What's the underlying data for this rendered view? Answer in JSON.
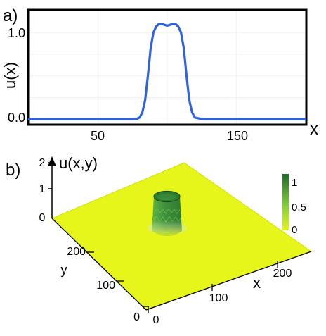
{
  "chart_data": [
    {
      "type": "line",
      "panel_label": "a)",
      "xlabel": "x",
      "ylabel": "u(x)",
      "xlim": [
        0,
        200
      ],
      "ylim": [
        -0.05,
        1.25
      ],
      "x_ticks": [
        50,
        150
      ],
      "x_tick_labels": [
        "50",
        "150"
      ],
      "y_ticks": [
        0.0,
        1.0
      ],
      "y_tick_labels": [
        "0.0",
        "1.0"
      ],
      "line_color": "#2f62e0",
      "series": [
        {
          "x": [
            0,
            20,
            40,
            60,
            70,
            76,
            78,
            80,
            82,
            84,
            86,
            88,
            90,
            92,
            94,
            96,
            98,
            100,
            102,
            104,
            106,
            108,
            110,
            112,
            114,
            116,
            118,
            120,
            126,
            140,
            160,
            180,
            200
          ],
          "values": [
            0,
            0,
            0,
            0,
            0,
            0,
            0.005,
            0.02,
            0.08,
            0.22,
            0.5,
            0.82,
            1.0,
            1.07,
            1.1,
            1.1,
            1.09,
            1.08,
            1.09,
            1.1,
            1.1,
            1.07,
            1.0,
            0.82,
            0.5,
            0.22,
            0.08,
            0.02,
            0,
            0,
            0,
            0,
            0
          ]
        }
      ]
    },
    {
      "type": "surface3d",
      "panel_label": "b)",
      "zlabel": "u(x,y)",
      "xlabel": "x",
      "ylabel": "y",
      "x_ticks": [
        0,
        100,
        200
      ],
      "y_ticks": [
        0,
        100,
        200
      ],
      "z_ticks": [
        0,
        1,
        2
      ],
      "xlim": [
        0,
        250
      ],
      "ylim": [
        0,
        250
      ],
      "zlim": [
        0,
        2.2
      ],
      "peak": {
        "cx": 100,
        "cy": 100,
        "radius": 15,
        "height": 1.1
      },
      "colorbar": {
        "ticks": [
          0,
          0.5,
          1
        ],
        "tick_labels": [
          "0",
          "0.5",
          "1"
        ],
        "range": [
          0,
          1.1
        ]
      },
      "colors": {
        "low": "#e6f51a",
        "high": "#1f6a2a"
      }
    }
  ]
}
